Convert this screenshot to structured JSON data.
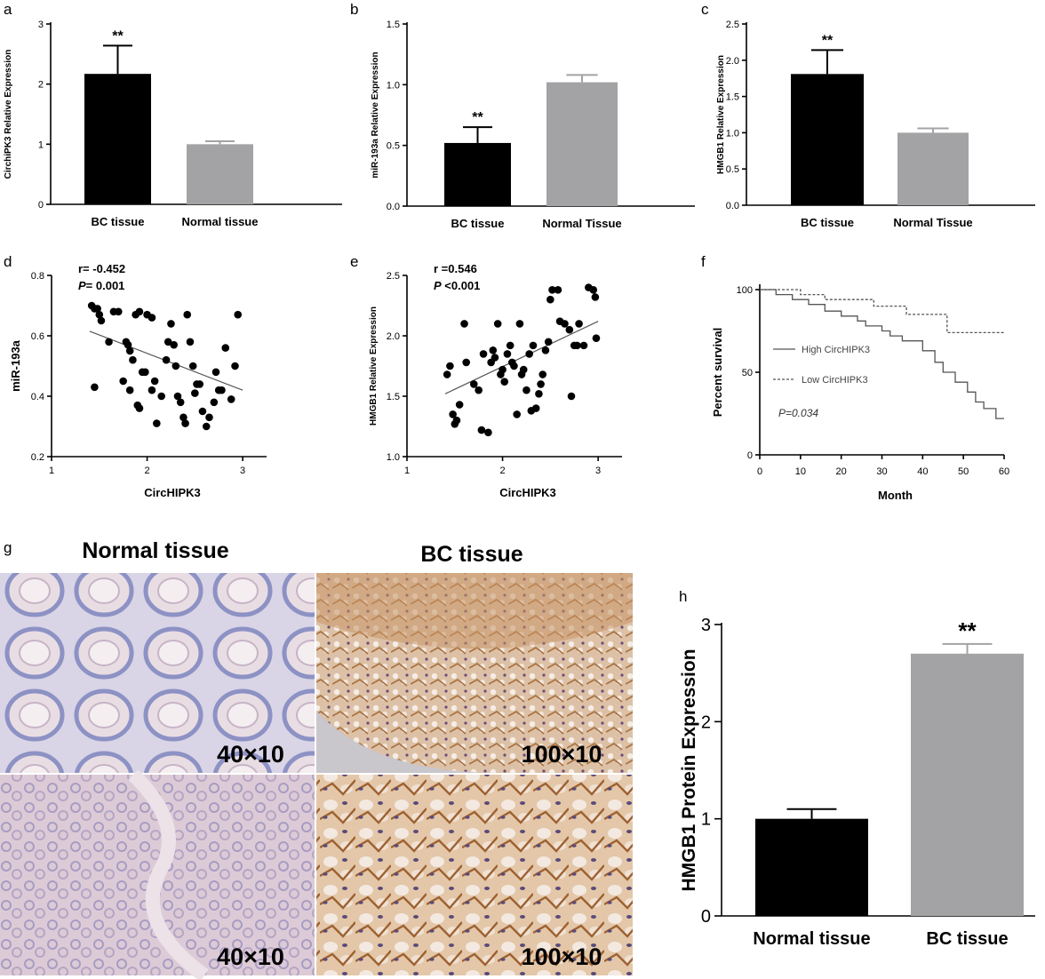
{
  "panel_letters": {
    "a": "a",
    "b": "b",
    "c": "c",
    "d": "d",
    "e": "e",
    "f": "f",
    "g": "g",
    "h": "h"
  },
  "colors": {
    "bc_bar": "#000000",
    "normal_bar": "#a3a3a5",
    "pink_stain": "#d8c6d4",
    "brown_stain": "#c08a52"
  },
  "chart_data": [
    {
      "panel": "a",
      "type": "bar",
      "categories": [
        "BC tissue",
        "Normal tissue"
      ],
      "values": [
        2.17,
        1.0
      ],
      "errors": [
        0.47,
        0.05
      ],
      "colors": [
        "#000000",
        "#a3a3a5"
      ],
      "ylabel": "CirchiPK3 Relative Expression",
      "ylim": [
        0,
        3
      ],
      "yticks": [
        0,
        1,
        2,
        3
      ],
      "ytick_labels": [
        "0",
        "1",
        "2",
        "3"
      ],
      "annotation": "**",
      "annotation_index": 0
    },
    {
      "panel": "b",
      "type": "bar",
      "categories": [
        "BC tissue",
        "Normal Tissue"
      ],
      "values": [
        0.52,
        1.02
      ],
      "errors": [
        0.13,
        0.06
      ],
      "colors": [
        "#000000",
        "#a3a3a5"
      ],
      "ylabel": "miR-193a Relative Expression",
      "ylim": [
        0,
        1.5
      ],
      "yticks": [
        0,
        0.5,
        1.0,
        1.5
      ],
      "ytick_labels": [
        "0.0",
        "0.5",
        "1.0",
        "1.5"
      ],
      "annotation": "**",
      "annotation_index": 0
    },
    {
      "panel": "c",
      "type": "bar",
      "categories": [
        "BC tissue",
        "Normal Tissue"
      ],
      "values": [
        1.81,
        1.0
      ],
      "errors": [
        0.33,
        0.06
      ],
      "colors": [
        "#000000",
        "#a3a3a5"
      ],
      "ylabel": "HMGB1 Relative Expression",
      "ylim": [
        0,
        2.5
      ],
      "yticks": [
        0,
        0.5,
        1.0,
        1.5,
        2.0,
        2.5
      ],
      "ytick_labels": [
        "0.0",
        "0.5",
        "1.0",
        "1.5",
        "2.0",
        "2.5"
      ],
      "annotation": "**",
      "annotation_index": 0
    },
    {
      "panel": "d",
      "type": "scatter",
      "xlabel": "CircHIPK3",
      "ylabel": "miR-193a",
      "xlim": [
        1,
        3.25
      ],
      "ylim": [
        0.2,
        0.8
      ],
      "xticks": [
        1,
        2,
        3
      ],
      "xtick_labels": [
        "1",
        "2",
        "3"
      ],
      "yticks": [
        0.2,
        0.4,
        0.6,
        0.8
      ],
      "ytick_labels": [
        "0.2",
        "0.4",
        "0.6",
        "0.8"
      ],
      "stat_r": "r= -0.452",
      "stat_p_label": "P",
      "stat_p_value": "= 0.001",
      "points": [
        [
          1.42,
          0.7
        ],
        [
          1.45,
          0.69
        ],
        [
          1.48,
          0.69
        ],
        [
          1.5,
          0.67
        ],
        [
          1.52,
          0.65
        ],
        [
          1.6,
          0.58
        ],
        [
          1.65,
          0.68
        ],
        [
          1.7,
          0.68
        ],
        [
          1.45,
          0.43
        ],
        [
          1.78,
          0.58
        ],
        [
          1.8,
          0.57
        ],
        [
          1.82,
          0.55
        ],
        [
          1.85,
          0.52
        ],
        [
          1.75,
          0.45
        ],
        [
          1.82,
          0.42
        ],
        [
          1.88,
          0.67
        ],
        [
          1.92,
          0.68
        ],
        [
          1.95,
          0.48
        ],
        [
          1.98,
          0.48
        ],
        [
          1.9,
          0.37
        ],
        [
          1.92,
          0.36
        ],
        [
          2.0,
          0.67
        ],
        [
          2.05,
          0.66
        ],
        [
          2.08,
          0.45
        ],
        [
          2.05,
          0.42
        ],
        [
          2.1,
          0.31
        ],
        [
          2.15,
          0.4
        ],
        [
          2.2,
          0.52
        ],
        [
          2.22,
          0.58
        ],
        [
          2.25,
          0.64
        ],
        [
          2.28,
          0.57
        ],
        [
          2.3,
          0.5
        ],
        [
          2.32,
          0.4
        ],
        [
          2.35,
          0.38
        ],
        [
          2.38,
          0.33
        ],
        [
          2.4,
          0.31
        ],
        [
          2.42,
          0.67
        ],
        [
          2.45,
          0.58
        ],
        [
          2.48,
          0.5
        ],
        [
          2.5,
          0.41
        ],
        [
          2.52,
          0.44
        ],
        [
          2.55,
          0.44
        ],
        [
          2.58,
          0.35
        ],
        [
          2.62,
          0.3
        ],
        [
          2.65,
          0.33
        ],
        [
          2.7,
          0.38
        ],
        [
          2.75,
          0.42
        ],
        [
          2.78,
          0.42
        ],
        [
          2.82,
          0.56
        ],
        [
          2.88,
          0.39
        ],
        [
          2.92,
          0.5
        ],
        [
          2.95,
          0.67
        ],
        [
          2.72,
          0.48
        ]
      ],
      "fit": {
        "x": [
          1.4,
          3.0
        ],
        "y": [
          0.615,
          0.42
        ]
      }
    },
    {
      "panel": "e",
      "type": "scatter",
      "xlabel": "CircHIPK3",
      "ylabel": "HMGB1 Relative Expression",
      "xlim": [
        1,
        3.25
      ],
      "ylim": [
        1.0,
        2.5
      ],
      "xticks": [
        1,
        2,
        3
      ],
      "xtick_labels": [
        "1",
        "2",
        "3"
      ],
      "yticks": [
        1.0,
        1.5,
        2.0,
        2.5
      ],
      "ytick_labels": [
        "1.0",
        "1.5",
        "2.0",
        "2.5"
      ],
      "stat_r": "r =0.546",
      "stat_p_label": "P",
      "stat_p_value": " <0.001",
      "points": [
        [
          1.42,
          1.68
        ],
        [
          1.45,
          1.75
        ],
        [
          1.48,
          1.35
        ],
        [
          1.5,
          1.27
        ],
        [
          1.52,
          1.3
        ],
        [
          1.55,
          1.43
        ],
        [
          1.6,
          2.1
        ],
        [
          1.62,
          1.78
        ],
        [
          1.7,
          1.6
        ],
        [
          1.75,
          1.55
        ],
        [
          1.78,
          1.22
        ],
        [
          1.8,
          1.85
        ],
        [
          1.85,
          1.2
        ],
        [
          1.88,
          1.78
        ],
        [
          1.9,
          1.88
        ],
        [
          1.92,
          1.82
        ],
        [
          1.95,
          2.1
        ],
        [
          1.98,
          1.68
        ],
        [
          2.0,
          1.72
        ],
        [
          2.02,
          1.62
        ],
        [
          2.05,
          1.85
        ],
        [
          2.08,
          1.92
        ],
        [
          2.1,
          1.78
        ],
        [
          2.12,
          1.75
        ],
        [
          2.15,
          1.35
        ],
        [
          2.18,
          2.1
        ],
        [
          2.2,
          1.68
        ],
        [
          2.22,
          1.72
        ],
        [
          2.25,
          1.55
        ],
        [
          2.28,
          1.85
        ],
        [
          2.3,
          1.38
        ],
        [
          2.32,
          1.92
        ],
        [
          2.35,
          1.4
        ],
        [
          2.38,
          1.52
        ],
        [
          2.4,
          1.6
        ],
        [
          2.42,
          1.68
        ],
        [
          2.45,
          1.88
        ],
        [
          2.48,
          1.95
        ],
        [
          2.5,
          2.3
        ],
        [
          2.52,
          2.38
        ],
        [
          2.58,
          2.38
        ],
        [
          2.6,
          2.12
        ],
        [
          2.65,
          2.1
        ],
        [
          2.7,
          2.05
        ],
        [
          2.72,
          1.5
        ],
        [
          2.75,
          1.92
        ],
        [
          2.78,
          1.92
        ],
        [
          2.8,
          2.1
        ],
        [
          2.85,
          1.92
        ],
        [
          2.9,
          2.4
        ],
        [
          2.95,
          2.38
        ],
        [
          2.97,
          2.32
        ],
        [
          2.98,
          1.98
        ]
      ],
      "fit": {
        "x": [
          1.4,
          3.0
        ],
        "y": [
          1.52,
          2.12
        ]
      }
    },
    {
      "panel": "f",
      "type": "line",
      "xlabel": "Month",
      "ylabel": "Percent survival",
      "xlim": [
        0,
        60
      ],
      "ylim": [
        0,
        100
      ],
      "xticks": [
        0,
        10,
        20,
        30,
        40,
        50,
        60
      ],
      "xtick_labels": [
        "0",
        "10",
        "20",
        "30",
        "40",
        "50",
        "60"
      ],
      "yticks": [
        0,
        50,
        100
      ],
      "ytick_labels": [
        "0",
        "50",
        "100"
      ],
      "p_label": "P=0.034",
      "series": [
        {
          "name": "High CircHIPK3",
          "color": "#555555",
          "steps": [
            [
              0,
              100
            ],
            [
              4,
              100
            ],
            [
              4,
              97
            ],
            [
              8,
              97
            ],
            [
              8,
              94
            ],
            [
              12,
              94
            ],
            [
              12,
              91
            ],
            [
              16,
              91
            ],
            [
              16,
              87
            ],
            [
              20,
              87
            ],
            [
              20,
              84
            ],
            [
              24,
              84
            ],
            [
              24,
              81
            ],
            [
              26,
              81
            ],
            [
              26,
              78
            ],
            [
              30,
              78
            ],
            [
              30,
              75
            ],
            [
              32,
              75
            ],
            [
              32,
              72
            ],
            [
              35,
              72
            ],
            [
              35,
              69
            ],
            [
              40,
              69
            ],
            [
              40,
              63
            ],
            [
              43,
              63
            ],
            [
              43,
              56
            ],
            [
              45,
              56
            ],
            [
              45,
              50
            ],
            [
              48,
              50
            ],
            [
              48,
              44
            ],
            [
              51,
              44
            ],
            [
              51,
              38
            ],
            [
              53,
              38
            ],
            [
              53,
              32
            ],
            [
              55,
              32
            ],
            [
              55,
              28
            ],
            [
              58,
              28
            ],
            [
              58,
              22
            ],
            [
              60,
              22
            ]
          ]
        },
        {
          "name": "Low CircHIPK3",
          "color": "#555555",
          "dashed": true,
          "steps": [
            [
              0,
              100
            ],
            [
              10,
              100
            ],
            [
              10,
              97
            ],
            [
              16,
              97
            ],
            [
              16,
              94
            ],
            [
              28,
              94
            ],
            [
              28,
              90
            ],
            [
              36,
              90
            ],
            [
              36,
              85
            ],
            [
              46,
              85
            ],
            [
              46,
              74
            ],
            [
              60,
              74
            ]
          ]
        }
      ]
    },
    {
      "panel": "h",
      "type": "bar",
      "categories": [
        "Normal tissue",
        "BC tissue"
      ],
      "values": [
        1.0,
        2.7
      ],
      "errors": [
        0.1,
        0.1
      ],
      "colors": [
        "#000000",
        "#a3a3a5"
      ],
      "ylabel": "HMGB1 Protein Expression",
      "ylim": [
        0,
        3
      ],
      "yticks": [
        0,
        1,
        2,
        3
      ],
      "ytick_labels": [
        "0",
        "1",
        "2",
        "3"
      ],
      "annotation": "**",
      "annotation_index": 1
    }
  ],
  "micrographs": {
    "normal_title": "Normal tissue",
    "bc_title": "BC tissue",
    "normal_top_label": "40×10",
    "normal_bottom_label": "40×10",
    "bc_top_label": "100×10",
    "bc_bottom_label": "100×10"
  }
}
